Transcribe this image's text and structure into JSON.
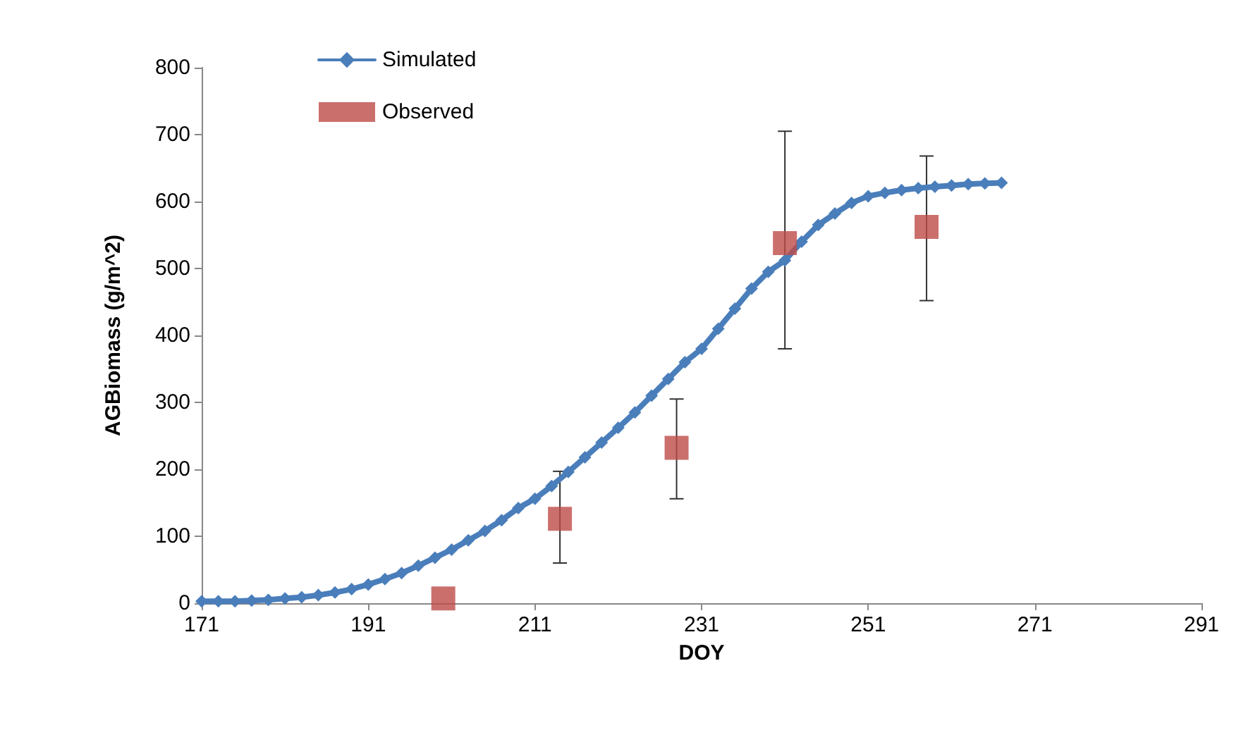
{
  "chart_data": {
    "type": "line",
    "xlabel": "DOY",
    "ylabel": "AGBiomass (g/m^2)",
    "xlim": [
      171,
      291
    ],
    "xticks": [
      171,
      191,
      211,
      231,
      251,
      271,
      291
    ],
    "ylim": [
      0,
      800
    ],
    "yticks": [
      0,
      100,
      200,
      300,
      400,
      500,
      600,
      700,
      800
    ],
    "grid": false,
    "legend": "top left",
    "series": [
      {
        "name": "Simulated",
        "marker": "diamond",
        "color": "#4a7ebb",
        "x": [
          171,
          173,
          175,
          177,
          179,
          181,
          183,
          185,
          187,
          189,
          191,
          193,
          195,
          197,
          199,
          201,
          203,
          205,
          207,
          209,
          211,
          213,
          215,
          217,
          219,
          221,
          223,
          225,
          227,
          229,
          231,
          233,
          235,
          237,
          239,
          241,
          243,
          245,
          247,
          249,
          251,
          253,
          255,
          257,
          259,
          261,
          263,
          265,
          267
        ],
        "values": [
          3,
          3,
          3,
          4,
          5,
          7,
          9,
          12,
          16,
          21,
          28,
          36,
          45,
          56,
          68,
          80,
          94,
          108,
          124,
          142,
          156,
          175,
          196,
          218,
          240,
          262,
          285,
          310,
          335,
          360,
          380,
          410,
          440,
          470,
          495,
          512,
          540,
          565,
          582,
          598,
          608,
          613,
          617,
          620,
          622,
          624,
          626,
          627,
          628
        ]
      },
      {
        "name": "Observed",
        "type": "scatter",
        "marker": "square",
        "color": "#be4b48",
        "x": [
          200,
          214,
          228,
          241,
          258
        ],
        "values": [
          7,
          126,
          232,
          538,
          562
        ],
        "errors": [
          null,
          [
            60,
            197
          ],
          [
            156,
            305
          ],
          [
            380,
            705
          ],
          [
            452,
            668
          ]
        ]
      }
    ]
  }
}
